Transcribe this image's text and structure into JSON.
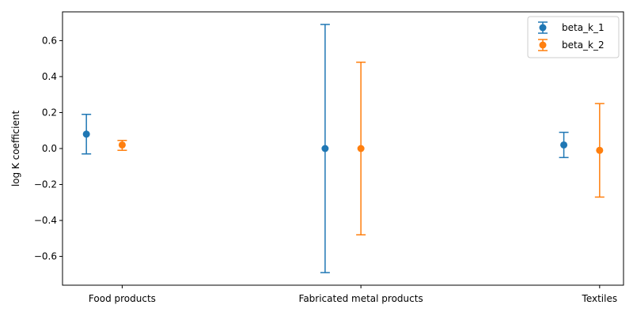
{
  "chart_data": {
    "type": "errorbar",
    "title": "",
    "xlabel": "",
    "ylabel": "log K coefficient",
    "ylim": [
      -0.76,
      0.76
    ],
    "yticks": [
      -0.6,
      -0.4,
      -0.2,
      0.0,
      0.2,
      0.4,
      0.6
    ],
    "ytick_labels": [
      "−0.6",
      "−0.4",
      "−0.2",
      "0.0",
      "0.2",
      "0.4",
      "0.6"
    ],
    "categories": [
      "Food products",
      "Fabricated metal products",
      "Textiles"
    ],
    "legend_position": "top-right",
    "grid": false,
    "series": [
      {
        "name": "beta_k_1",
        "color": "#1f77b4",
        "x": [
          -0.15,
          1.85,
          3.85
        ],
        "values": [
          0.08,
          0.0,
          0.02
        ],
        "lower": [
          -0.03,
          -0.69,
          -0.05
        ],
        "upper": [
          0.19,
          0.69,
          0.09
        ]
      },
      {
        "name": "beta_k_2",
        "color": "#ff7f0e",
        "x": [
          0.15,
          2.15,
          4.15
        ],
        "values": [
          0.02,
          0.0,
          -0.01
        ],
        "lower": [
          -0.01,
          -0.48,
          -0.27
        ],
        "upper": [
          0.045,
          0.48,
          0.25
        ]
      }
    ],
    "category_x": [
      0.15,
      2.15,
      4.15
    ],
    "xlim": [
      -0.35,
      4.35
    ]
  }
}
